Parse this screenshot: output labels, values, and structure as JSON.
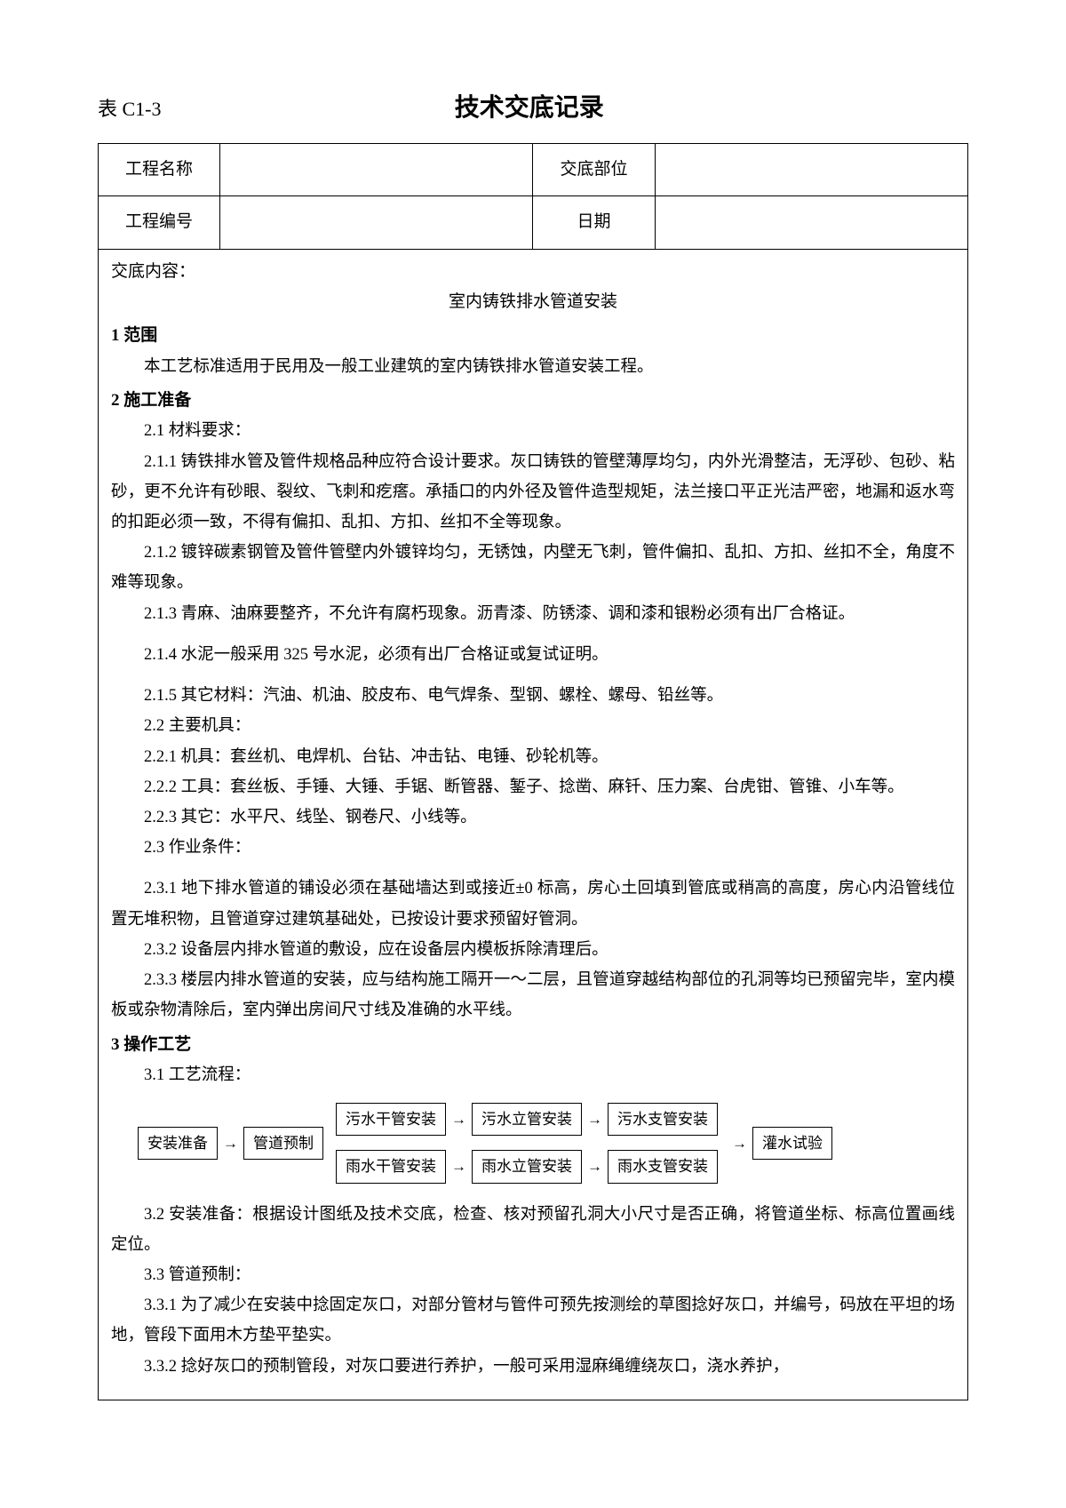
{
  "header": {
    "tableLabel": "表 C1-3",
    "title": "技术交底记录"
  },
  "infoTable": {
    "row1": {
      "label1": "工程名称",
      "value1": "",
      "label2": "交底部位",
      "value2": ""
    },
    "row2": {
      "label1": "工程编号",
      "value1": "",
      "label2": "日期",
      "value2": ""
    }
  },
  "content": {
    "sectionLabel": "交底内容：",
    "subtitle": "室内铸铁排水管道安装",
    "s1": {
      "title": "1  范围",
      "p1": "本工艺标准适用于民用及一般工业建筑的室内铸铁排水管道安装工程。"
    },
    "s2": {
      "title": "2  施工准备",
      "s21": "2.1 材料要求：",
      "s211": "2.1.1 铸铁排水管及管件规格品种应符合设计要求。灰口铸铁的管壁薄厚均匀，内外光滑整洁，无浮砂、包砂、粘砂，更不允许有砂眼、裂纹、飞刺和疙瘩。承插口的内外径及管件造型规矩，法兰接口平正光洁严密，地漏和返水弯的扣距必须一致，不得有偏扣、乱扣、方扣、丝扣不全等现象。",
      "s212": "2.1.2 镀锌碳素钢管及管件管壁内外镀锌均匀，无锈蚀，内壁无飞刺，管件偏扣、乱扣、方扣、丝扣不全，角度不难等现象。",
      "s213": "2.1.3 青麻、油麻要整齐，不允许有腐朽现象。沥青漆、防锈漆、调和漆和银粉必须有出厂合格证。",
      "s214": "2.1.4 水泥一般采用 325 号水泥，必须有出厂合格证或复试证明。",
      "s215": "2.1.5 其它材料：汽油、机油、胶皮布、电气焊条、型钢、螺栓、螺母、铅丝等。",
      "s22": "2.2 主要机具：",
      "s221": "2.2.1 机具：套丝机、电焊机、台钻、冲击钻、电锤、砂轮机等。",
      "s222": "2.2.2 工具：套丝板、手锤、大锤、手锯、断管器、錾子、捻凿、麻钎、压力案、台虎钳、管锥、小车等。",
      "s223": "2.2.3 其它：水平尺、线坠、钢卷尺、小线等。",
      "s23": "2.3 作业条件：",
      "s231": "2.3.1  地下排水管道的铺设必须在基础墙达到或接近±0 标高，房心土回填到管底或稍高的高度，房心内沿管线位置无堆积物，且管道穿过建筑基础处，已按设计要求预留好管洞。",
      "s232": "2.3.2  设备层内排水管道的敷设，应在设备层内模板拆除清理后。",
      "s233": "2.3.3  楼层内排水管道的安装，应与结构施工隔开一～二层，且管道穿越结构部位的孔洞等均已预留完毕，室内模板或杂物清除后，室内弹出房间尺寸线及准确的水平线。"
    },
    "s3": {
      "title": "3  操作工艺",
      "s31": "3.1  工艺流程：",
      "flow": {
        "b1": "安装准备",
        "b2": "管道预制",
        "b3a": "污水干管安装",
        "b4a": "污水立管安装",
        "b5a": "污水支管安装",
        "b3b": "雨水干管安装",
        "b4b": "雨水立管安装",
        "b5b": "雨水支管安装",
        "b6": "灌水试验",
        "arrow": "→"
      },
      "s32": "3.2  安装准备：根据设计图纸及技术交底，检查、核对预留孔洞大小尺寸是否正确，将管道坐标、标高位置画线定位。",
      "s33": "3.3  管道预制：",
      "s331": "3.3.1  为了减少在安装中捻固定灰口，对部分管材与管件可预先按测绘的草图捻好灰口，并编号，码放在平坦的场地，管段下面用木方垫平垫实。",
      "s332": "3.3.2  捻好灰口的预制管段，对灰口要进行养护，一般可采用湿麻绳缠绕灰口，浇水养护，"
    }
  }
}
